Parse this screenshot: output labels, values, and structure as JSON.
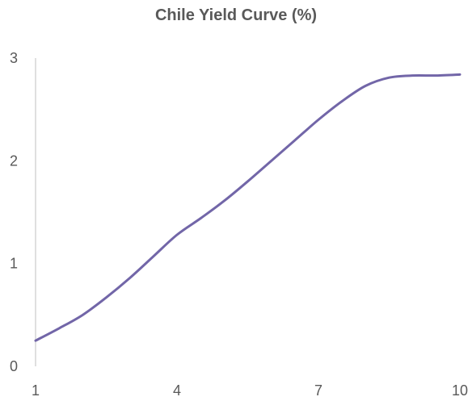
{
  "chart_data": {
    "type": "line",
    "title": "Chile Yield Curve (%)",
    "xlabel": "",
    "ylabel": "",
    "x": [
      1,
      1.5,
      2,
      2.5,
      3,
      3.5,
      4,
      4.5,
      5,
      5.5,
      6,
      6.5,
      7,
      7.5,
      8,
      8.5,
      9,
      9.5,
      10
    ],
    "series": [
      {
        "values": [
          0.25,
          0.37,
          0.5,
          0.67,
          0.86,
          1.07,
          1.28,
          1.44,
          1.61,
          1.8,
          2.0,
          2.2,
          2.4,
          2.58,
          2.73,
          2.81,
          2.83,
          2.83,
          2.84
        ],
        "color": "#7266a8"
      }
    ],
    "xlim": [
      1,
      10
    ],
    "ylim": [
      0,
      3
    ],
    "xticks": [
      1,
      4,
      7,
      10
    ],
    "yticks": [
      0,
      1,
      2,
      3
    ],
    "grid": false,
    "legend": "none"
  },
  "colors": {
    "line": "#7266a8",
    "axis": "#bfbfbf",
    "text": "#595959"
  }
}
